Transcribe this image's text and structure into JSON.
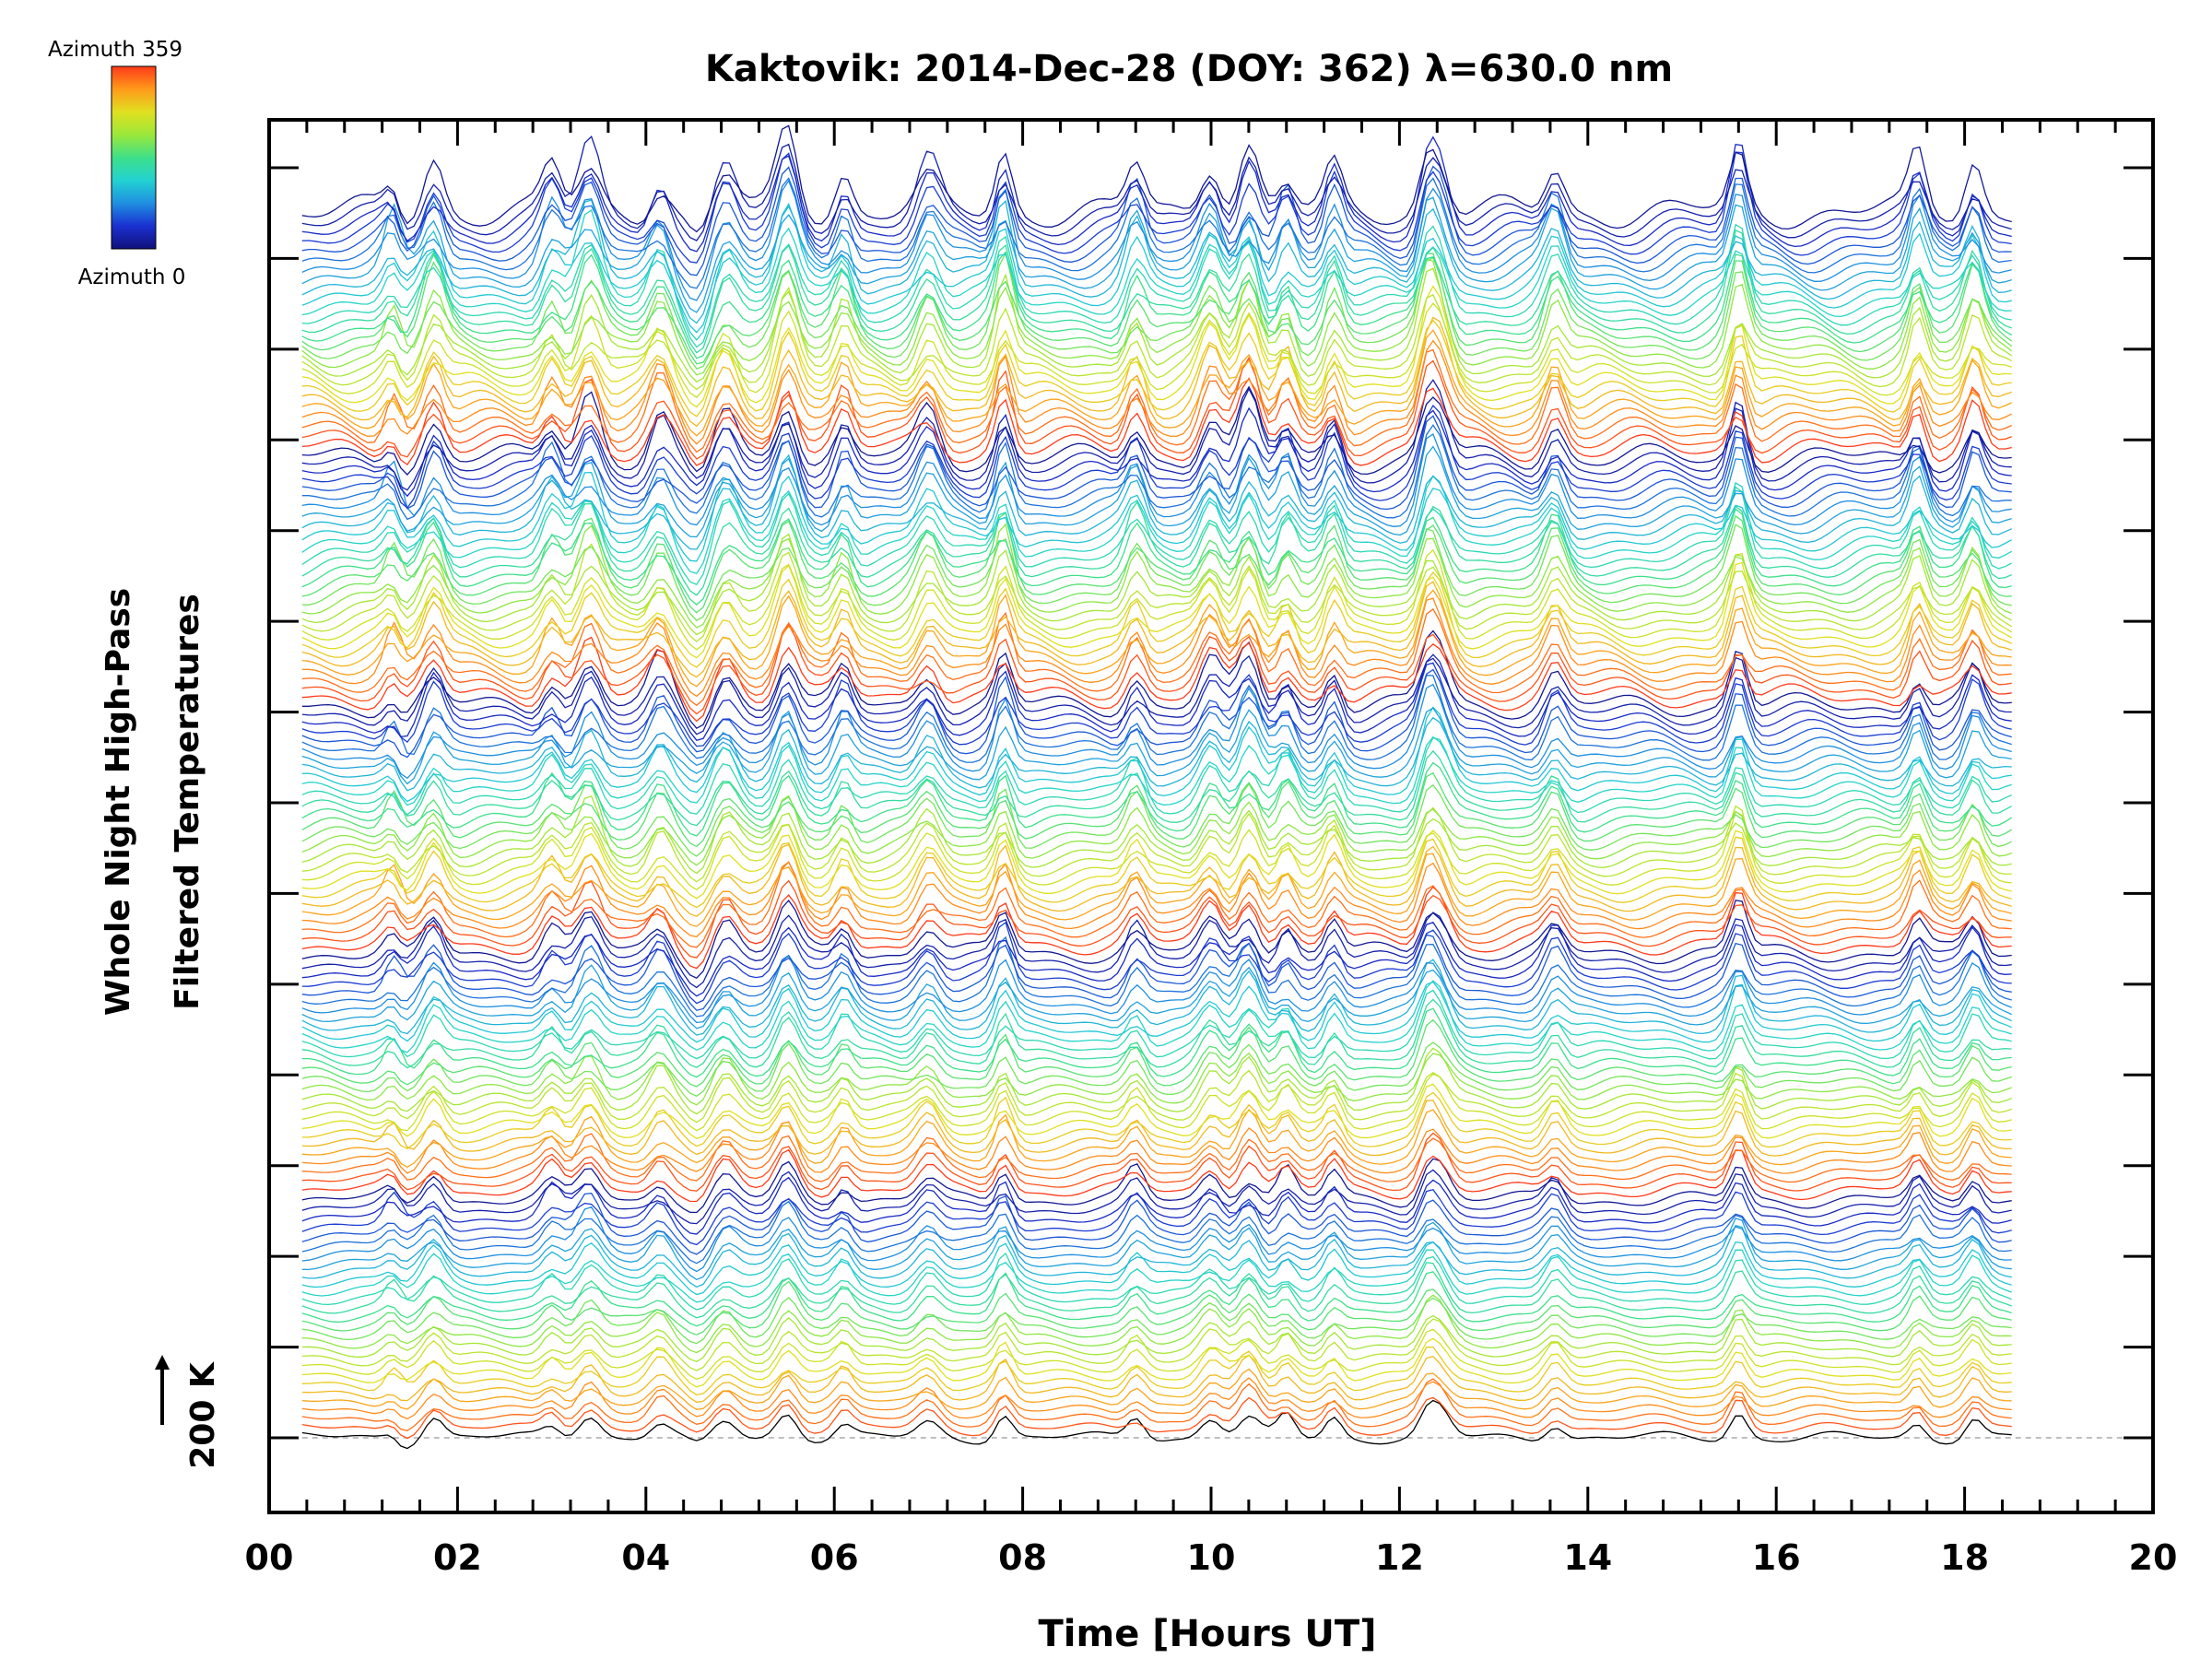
{
  "chart_data": {
    "type": "line",
    "title": "Kaktovik: 2014-Dec-28 (DOY: 362) λ=630.0 nm",
    "xlabel": "Time [Hours UT]",
    "ylabel_line1": "Whole Night High-Pass",
    "ylabel_line2": "Filtered Temperatures",
    "scale_label": "200 K",
    "xlim": [
      0,
      20
    ],
    "x_ticks": [
      "00",
      "02",
      "04",
      "06",
      "08",
      "10",
      "12",
      "14",
      "16",
      "18",
      "20"
    ],
    "time_range_hours": [
      0.35,
      18.5
    ],
    "n_traces": 140,
    "colorbar": {
      "top_label": "Azimuth 359",
      "bottom_label": "Azimuth 0",
      "range": [
        0,
        359
      ],
      "colors": [
        "#10107a",
        "#1a30d0",
        "#1f8fe0",
        "#22d2d2",
        "#3ee08a",
        "#9be83a",
        "#e0e020",
        "#ff9a1a",
        "#ff3a1a"
      ]
    },
    "baseline_color": "#aaaaaa",
    "peak_times_hours": [
      1.35,
      1.75,
      3.0,
      3.4,
      4.15,
      4.85,
      5.5,
      6.1,
      7.0,
      7.8,
      9.2,
      10.0,
      10.4,
      10.8,
      11.3,
      12.3,
      12.45,
      13.65,
      15.6,
      17.5,
      18.1
    ]
  }
}
